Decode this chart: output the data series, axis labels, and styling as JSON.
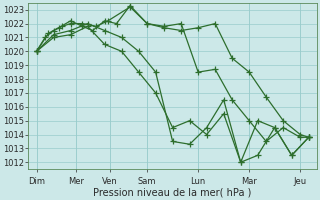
{
  "xlabel": "Pression niveau de la mer( hPa )",
  "background_color": "#cce8e8",
  "grid_color": "#99cccc",
  "line_color": "#2d6e2d",
  "ylim": [
    1011.5,
    1023.5
  ],
  "yticks": [
    1012,
    1013,
    1014,
    1015,
    1016,
    1017,
    1018,
    1019,
    1020,
    1021,
    1022,
    1023
  ],
  "xtick_labels": [
    "Dim",
    "Mer",
    "Ven",
    "Sam",
    "Lun",
    "Mar",
    "Jeu"
  ],
  "xlim": [
    -0.5,
    16.5
  ],
  "lines": [
    {
      "x": [
        0,
        0.5,
        1.0,
        1.5,
        2.0,
        2.7,
        3.5,
        4.2,
        5.5,
        6.5,
        7.5,
        8.5,
        9.5,
        10.5,
        11.5,
        12.5,
        13.5,
        14.5,
        15.5,
        16.0
      ],
      "y": [
        1020.0,
        1021.0,
        1021.5,
        1021.8,
        1022.0,
        1022.0,
        1021.8,
        1022.2,
        1023.2,
        1022.0,
        1021.7,
        1021.5,
        1021.7,
        1022.0,
        1019.5,
        1018.5,
        1016.7,
        1015.0,
        1014.0,
        1013.8
      ]
    },
    {
      "x": [
        0,
        0.7,
        1.3,
        2.0,
        2.7,
        3.3,
        4.0,
        4.7,
        5.5,
        6.5,
        7.5,
        8.5,
        9.5,
        10.5,
        11.5,
        12.5,
        13.5,
        14.5,
        15.5,
        16.0
      ],
      "y": [
        1020.0,
        1021.3,
        1021.7,
        1022.2,
        1021.8,
        1021.5,
        1022.2,
        1022.0,
        1023.3,
        1022.0,
        1021.8,
        1022.0,
        1018.5,
        1018.7,
        1016.5,
        1015.0,
        1013.5,
        1014.5,
        1013.8,
        1013.8
      ]
    },
    {
      "x": [
        0,
        1.0,
        2.0,
        3.0,
        4.0,
        5.0,
        6.0,
        7.0,
        8.0,
        9.0,
        10.0,
        11.0,
        12.0,
        13.0,
        14.0,
        15.0,
        16.0
      ],
      "y": [
        1020.0,
        1021.2,
        1021.5,
        1022.0,
        1021.5,
        1021.0,
        1020.0,
        1018.5,
        1013.5,
        1013.3,
        1014.5,
        1016.5,
        1012.0,
        1015.0,
        1014.5,
        1012.5,
        1013.8
      ]
    },
    {
      "x": [
        0,
        1.0,
        2.0,
        3.0,
        4.0,
        5.0,
        6.0,
        7.0,
        8.0,
        9.0,
        10.0,
        11.0,
        12.0,
        13.0,
        14.0,
        15.0,
        16.0
      ],
      "y": [
        1020.0,
        1021.0,
        1021.2,
        1021.8,
        1020.5,
        1020.0,
        1018.5,
        1017.0,
        1014.5,
        1015.0,
        1014.0,
        1015.5,
        1012.0,
        1012.5,
        1014.5,
        1012.5,
        1013.8
      ]
    }
  ],
  "day_positions": [
    0,
    2.3,
    4.3,
    6.5,
    9.5,
    12.5,
    15.5
  ],
  "day_labels": [
    "Dim",
    "Mer",
    "Ven",
    "Sam",
    "Lun",
    "Mar",
    "Jeu"
  ],
  "marker_size": 4,
  "linewidth": 0.9,
  "xlabel_fontsize": 7,
  "ytick_fontsize": 6,
  "xtick_fontsize": 6
}
